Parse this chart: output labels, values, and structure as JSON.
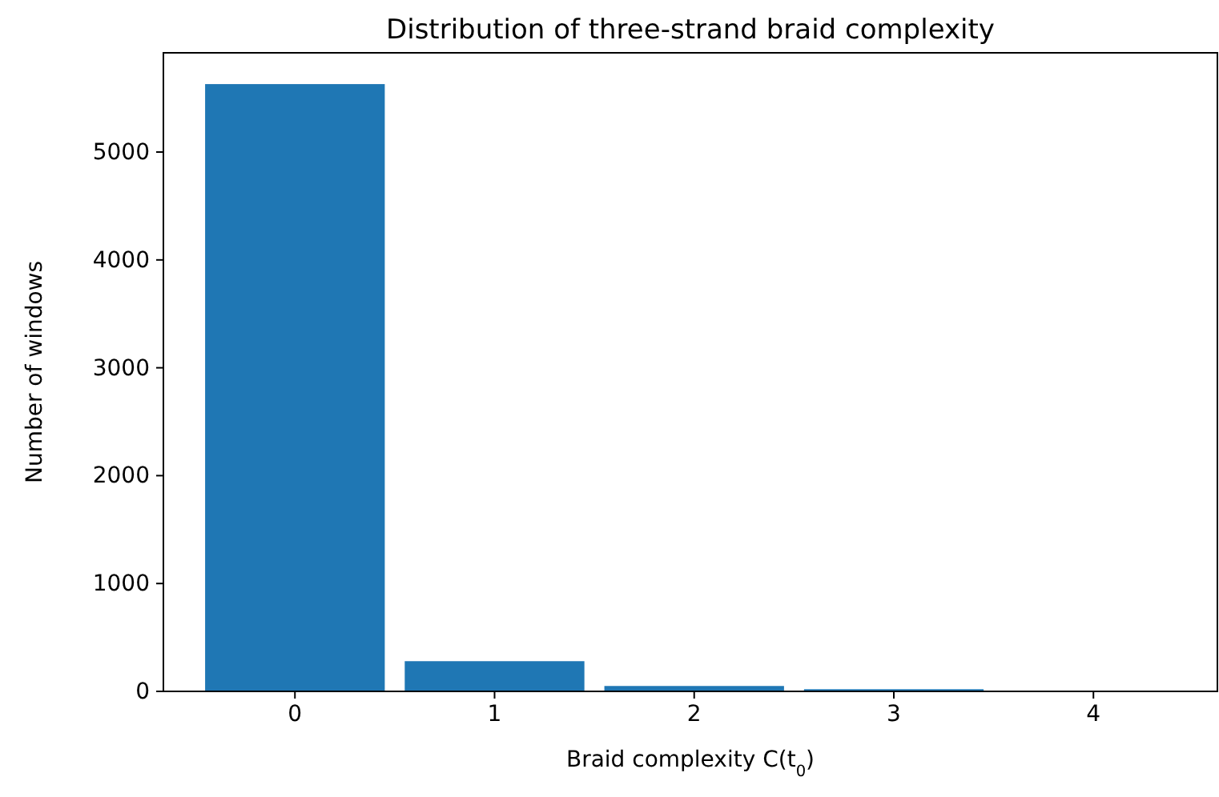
{
  "chart_data": {
    "type": "bar",
    "title": "Distribution of three-strand braid complexity",
    "xlabel": "Braid complexity C(t$_{0}$)",
    "ylabel": "Number of windows",
    "categories": [
      "0",
      "1",
      "2",
      "3",
      "4"
    ],
    "values": [
      5630,
      280,
      50,
      20,
      0
    ],
    "color": "#1f77b4",
    "ylim": [
      0,
      5920
    ],
    "yticks": [
      0,
      1000,
      2000,
      3000,
      4000,
      5000
    ],
    "grid": false
  }
}
